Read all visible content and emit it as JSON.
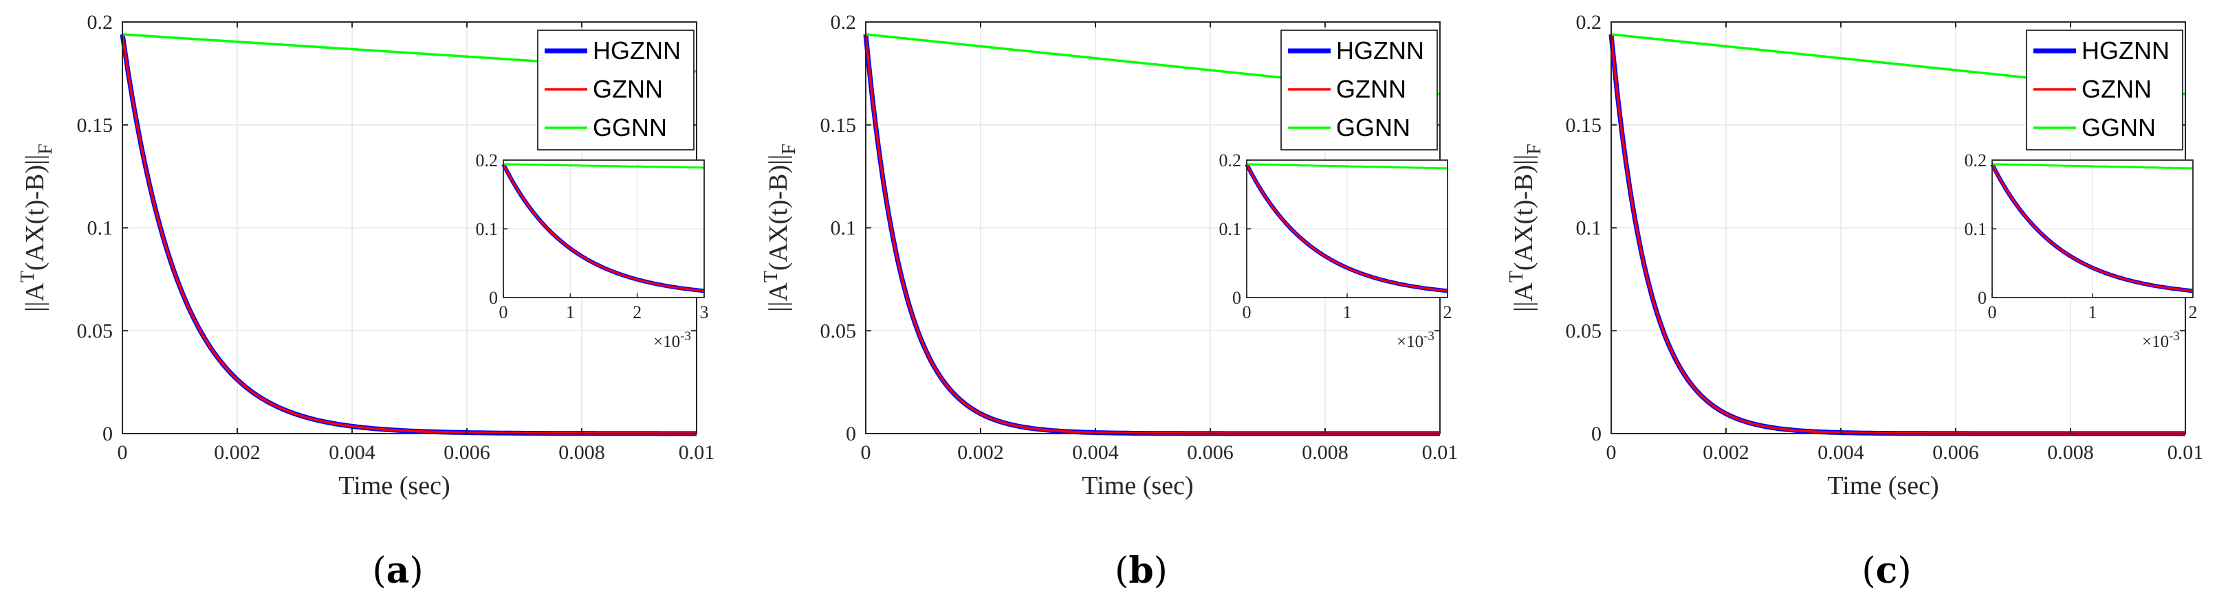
{
  "figure": {
    "panels": [
      {
        "caption": "(a)",
        "caption_bold": "a"
      },
      {
        "caption": "(b)",
        "caption_bold": "b"
      },
      {
        "caption": "(c)",
        "caption_bold": "c"
      }
    ]
  },
  "colors": {
    "HGZNN": "#0000ff",
    "GZNN": "#ff0000",
    "GGNN": "#00ff00",
    "grid": "#e6e6e6",
    "axis": "#262626"
  },
  "chart_data": [
    {
      "type": "line",
      "title": "",
      "xlabel": "Time (sec)",
      "ylabel": "||A^T(AX(t)-B)||_F",
      "ylabel_parts": {
        "norm_open": "||A",
        "sup": "T",
        "body": "(AX(t)-B)||",
        "sub": "F"
      },
      "xlim": [
        0,
        0.01
      ],
      "ylim": [
        0,
        0.2
      ],
      "xticks": [
        0,
        0.002,
        0.004,
        0.006,
        0.008,
        0.01
      ],
      "xtick_labels": [
        "0",
        "0.002",
        "0.004",
        "0.006",
        "0.008",
        "0.01"
      ],
      "yticks": [
        0,
        0.05,
        0.1,
        0.15,
        0.2
      ],
      "ytick_labels": [
        "0",
        "0.05",
        "0.1",
        "0.15",
        "0.2"
      ],
      "grid": true,
      "legend_position": "top-right",
      "series": [
        {
          "name": "HGZNN",
          "initial": 0.194,
          "decay_rate": 1000
        },
        {
          "name": "GZNN",
          "initial": 0.194,
          "decay_rate": 1000
        },
        {
          "name": "GGNN",
          "initial": 0.194,
          "end_value": 0.176
        }
      ],
      "inset": {
        "xlim": [
          0,
          0.003
        ],
        "ylim": [
          0,
          0.2
        ],
        "xticks": [
          0,
          1,
          2,
          3
        ],
        "xtick_labels": [
          "0",
          "1",
          "2",
          "3"
        ],
        "yticks": [
          0,
          0.1,
          0.2
        ],
        "ytick_labels": [
          "0",
          "0.1",
          "0.2"
        ],
        "multiplier": "×10",
        "multiplier_exp": "-3",
        "ggnn_end": 0.189
      }
    },
    {
      "type": "line",
      "title": "",
      "xlabel": "Time (sec)",
      "ylabel": "||A^T(AX(t)-B)||_F",
      "ylabel_parts": {
        "norm_open": "||A",
        "sup": "T",
        "body": "(AX(t)-B)||",
        "sub": "F"
      },
      "xlim": [
        0,
        0.01
      ],
      "ylim": [
        0,
        0.2
      ],
      "xticks": [
        0,
        0.002,
        0.004,
        0.006,
        0.008,
        0.01
      ],
      "xtick_labels": [
        "0",
        "0.002",
        "0.004",
        "0.006",
        "0.008",
        "0.01"
      ],
      "yticks": [
        0,
        0.05,
        0.1,
        0.15,
        0.2
      ],
      "ytick_labels": [
        "0",
        "0.05",
        "0.1",
        "0.15",
        "0.2"
      ],
      "grid": true,
      "legend_position": "top-right",
      "series": [
        {
          "name": "HGZNN",
          "initial": 0.194,
          "decay_rate": 1500
        },
        {
          "name": "GZNN",
          "initial": 0.194,
          "decay_rate": 1500
        },
        {
          "name": "GGNN",
          "initial": 0.194,
          "end_value": 0.165
        }
      ],
      "inset": {
        "xlim": [
          0,
          0.002
        ],
        "ylim": [
          0,
          0.2
        ],
        "xticks": [
          0,
          1,
          2
        ],
        "xtick_labels": [
          "0",
          "1",
          "2"
        ],
        "yticks": [
          0,
          0.1,
          0.2
        ],
        "ytick_labels": [
          "0",
          "0.1",
          "0.2"
        ],
        "multiplier": "×10",
        "multiplier_exp": "-3",
        "ggnn_end": 0.188
      }
    },
    {
      "type": "line",
      "title": "",
      "xlabel": "Time (sec)",
      "ylabel": "||A^T(AX(t)-B)||_F",
      "ylabel_parts": {
        "norm_open": "||A",
        "sup": "T",
        "body": "(AX(t)-B)||",
        "sub": "F"
      },
      "xlim": [
        0,
        0.01
      ],
      "ylim": [
        0,
        0.2
      ],
      "xticks": [
        0,
        0.002,
        0.004,
        0.006,
        0.008,
        0.01
      ],
      "xtick_labels": [
        "0",
        "0.002",
        "0.004",
        "0.006",
        "0.008",
        "0.01"
      ],
      "yticks": [
        0,
        0.05,
        0.1,
        0.15,
        0.2
      ],
      "ytick_labels": [
        "0",
        "0.05",
        "0.1",
        "0.15",
        "0.2"
      ],
      "grid": true,
      "legend_position": "top-right",
      "series": [
        {
          "name": "HGZNN",
          "initial": 0.194,
          "decay_rate": 1500
        },
        {
          "name": "GZNN",
          "initial": 0.194,
          "decay_rate": 1500
        },
        {
          "name": "GGNN",
          "initial": 0.194,
          "end_value": 0.165
        }
      ],
      "inset": {
        "xlim": [
          0,
          0.002
        ],
        "ylim": [
          0,
          0.2
        ],
        "xticks": [
          0,
          1,
          2
        ],
        "xtick_labels": [
          "0",
          "1",
          "2"
        ],
        "yticks": [
          0,
          0.1,
          0.2
        ],
        "ytick_labels": [
          "0",
          "0.1",
          "0.2"
        ],
        "multiplier": "×10",
        "multiplier_exp": "-3",
        "ggnn_end": 0.188
      }
    }
  ]
}
